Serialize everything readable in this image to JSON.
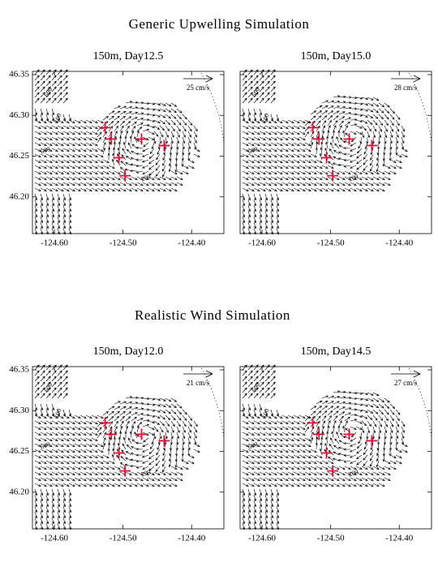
{
  "section_titles": [
    "Generic Upwelling Simulation",
    "Realistic Wind Simulation"
  ],
  "chart_data": [
    {
      "type": "quiver",
      "title": "150m, Day12.5",
      "scale_label": "25 cm/s",
      "xlim": [
        -124.632,
        -124.353
      ],
      "ylim": [
        46.155,
        46.354
      ],
      "xticks": [
        {
          "value": -124.6,
          "label": "-124.60"
        },
        {
          "value": -124.5,
          "label": "-124.50"
        },
        {
          "value": -124.4,
          "label": "-124.40"
        }
      ],
      "yticks": [
        {
          "value": 46.2,
          "label": "46.20"
        },
        46.25,
        {
          "value": 46.3,
          "label": "46.30"
        },
        46.35
      ],
      "stations": {
        "color": "#e0103a",
        "x": [
          -124.526,
          -124.517,
          -124.473,
          -124.44,
          -124.506,
          -124.497
        ],
        "y": [
          46.285,
          46.271,
          46.271,
          46.263,
          46.248,
          46.226
        ]
      },
      "contour_labels": [
        "600",
        "100",
        "600",
        "200"
      ]
    },
    {
      "type": "quiver",
      "title": "150m, Day15.0",
      "scale_label": "28 cm/s",
      "xlim": [
        -124.632,
        -124.353
      ],
      "ylim": [
        46.155,
        46.354
      ],
      "xticks": [
        {
          "value": -124.6,
          "label": "-124.60"
        },
        {
          "value": -124.5,
          "label": "-124.50"
        },
        {
          "value": -124.4,
          "label": "-124.40"
        }
      ],
      "yticks": [
        46.2,
        46.25,
        46.3,
        46.35
      ],
      "stations": {
        "color": "#e0103a",
        "x": [
          -124.526,
          -124.517,
          -124.473,
          -124.44,
          -124.506,
          -124.497
        ],
        "y": [
          46.285,
          46.271,
          46.271,
          46.263,
          46.248,
          46.226
        ]
      },
      "contour_labels": [
        "600",
        "100",
        "600",
        "200"
      ]
    },
    {
      "type": "quiver",
      "title": "150m, Day12.0",
      "scale_label": "21 cm/s",
      "xlim": [
        -124.632,
        -124.353
      ],
      "ylim": [
        46.155,
        46.354
      ],
      "xticks": [
        {
          "value": -124.6,
          "label": "-124.60"
        },
        {
          "value": -124.5,
          "label": "-124.50"
        },
        {
          "value": -124.4,
          "label": "-124.40"
        }
      ],
      "yticks": [
        {
          "value": 46.2,
          "label": "46.20"
        },
        46.25,
        {
          "value": 46.3,
          "label": "46.30"
        },
        46.35
      ],
      "stations": {
        "color": "#e0103a",
        "x": [
          -124.526,
          -124.517,
          -124.473,
          -124.44,
          -124.506,
          -124.497
        ],
        "y": [
          46.285,
          46.271,
          46.271,
          46.263,
          46.248,
          46.226
        ]
      },
      "contour_labels": [
        "600",
        "100",
        "600",
        "200"
      ]
    },
    {
      "type": "quiver",
      "title": "150m, Day14.5",
      "scale_label": "27 cm/s",
      "xlim": [
        -124.632,
        -124.353
      ],
      "ylim": [
        46.155,
        46.354
      ],
      "xticks": [
        {
          "value": -124.6,
          "label": "-124.60"
        },
        {
          "value": -124.5,
          "label": "-124.50"
        },
        {
          "value": -124.4,
          "label": "-124.40"
        }
      ],
      "yticks": [
        46.2,
        46.25,
        46.3,
        46.35
      ],
      "stations": {
        "color": "#e0103a",
        "x": [
          -124.526,
          -124.517,
          -124.473,
          -124.44,
          -124.506,
          -124.497
        ],
        "y": [
          46.285,
          46.271,
          46.271,
          46.263,
          46.248,
          46.226
        ]
      },
      "contour_labels": [
        "600",
        "100",
        "600",
        "200"
      ]
    }
  ]
}
